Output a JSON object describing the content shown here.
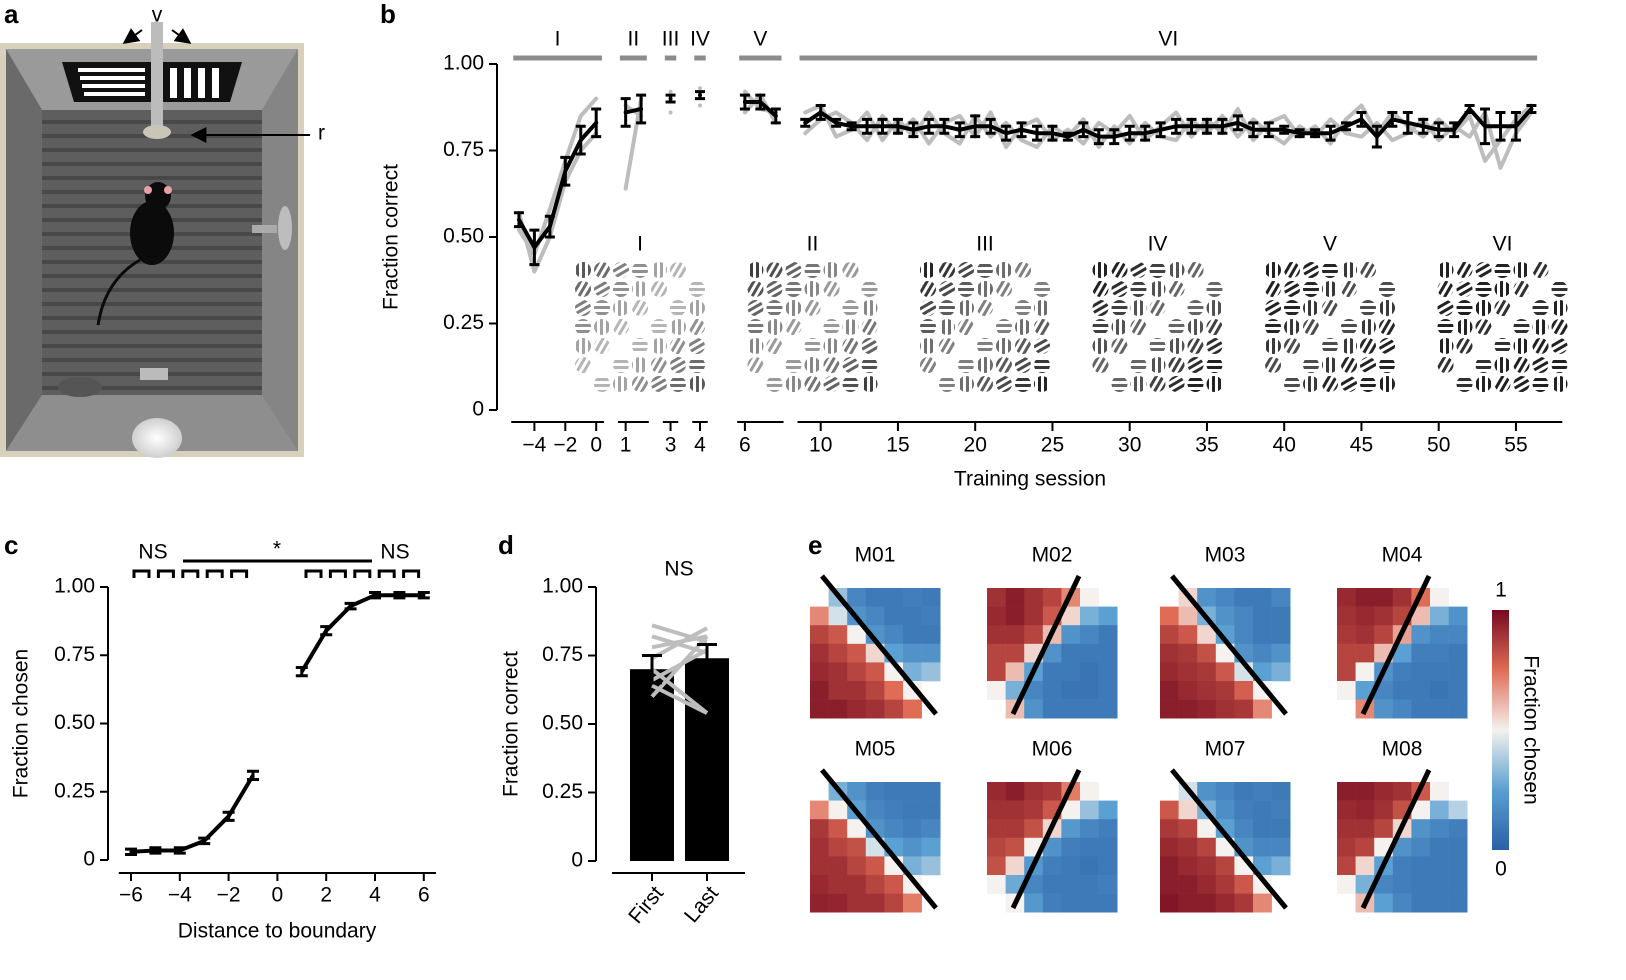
{
  "illustration": {
    "panel": "a",
    "labels": [
      "v",
      "r"
    ]
  },
  "chart_data": [
    {
      "panel": "b",
      "type": "line",
      "ylabel": "Fraction correct",
      "xlabel": "Training session",
      "ylim": [
        0,
        1
      ],
      "yticks": [
        0,
        0.25,
        {
          "value": 0.5,
          "label": "0.50"
        },
        0.75,
        {
          "value": 1,
          "label": "1.00"
        }
      ],
      "xlim": [
        -6,
        58
      ],
      "xticks": [
        {
          "value": -4,
          "label": "−4"
        },
        {
          "value": -2,
          "label": "−2"
        },
        0,
        1,
        3,
        4,
        6,
        10,
        15,
        20,
        25,
        30,
        35,
        40,
        45,
        50,
        55
      ],
      "phases": [
        {
          "label": "I",
          "range": [
            -5,
            0
          ]
        },
        {
          "label": "II",
          "range": [
            1,
            2
          ]
        },
        {
          "label": "III",
          "range": [
            3,
            3
          ]
        },
        {
          "label": "IV",
          "range": [
            4,
            4
          ]
        },
        {
          "label": "V",
          "range": [
            6,
            8
          ]
        },
        {
          "label": "VI",
          "range": [
            9,
            56
          ]
        }
      ],
      "phase_color": "#8c8c8c",
      "insets": [
        "I",
        "II",
        "III",
        "IV",
        "V",
        "VI"
      ],
      "x": [
        -5,
        -4,
        -3,
        -2,
        -1,
        0,
        1,
        2,
        3,
        4,
        6,
        7,
        8,
        9,
        10,
        11,
        12,
        13,
        14,
        15,
        16,
        17,
        18,
        19,
        20,
        21,
        22,
        23,
        24,
        25,
        26,
        27,
        28,
        29,
        30,
        31,
        32,
        33,
        34,
        35,
        36,
        37,
        38,
        39,
        40,
        41,
        42,
        43,
        44,
        45,
        46,
        47,
        48,
        49,
        50,
        51,
        52,
        53,
        54,
        55,
        56
      ],
      "values": [
        0.55,
        0.47,
        0.53,
        0.69,
        0.78,
        0.83,
        0.86,
        0.87,
        0.9,
        0.91,
        0.89,
        0.89,
        0.85,
        0.83,
        0.86,
        0.83,
        0.82,
        0.82,
        0.82,
        0.82,
        0.81,
        0.82,
        0.82,
        0.81,
        0.82,
        0.82,
        0.8,
        0.81,
        0.8,
        0.8,
        0.79,
        0.81,
        0.79,
        0.79,
        0.8,
        0.8,
        0.81,
        0.82,
        0.82,
        0.82,
        0.82,
        0.83,
        0.81,
        0.81,
        0.81,
        0.8,
        0.8,
        0.8,
        0.82,
        0.84,
        0.79,
        0.84,
        0.83,
        0.82,
        0.81,
        0.81,
        0.87,
        0.82,
        0.82,
        0.82,
        0.87
      ],
      "errors": [
        0.02,
        0.05,
        0.03,
        0.04,
        0.04,
        0.04,
        0.04,
        0.04,
        0.01,
        0.01,
        0.02,
        0.02,
        0.02,
        0.01,
        0.02,
        0.01,
        0.01,
        0.02,
        0.02,
        0.02,
        0.02,
        0.02,
        0.02,
        0.02,
        0.03,
        0.02,
        0.02,
        0.02,
        0.02,
        0.02,
        0.01,
        0.02,
        0.02,
        0.02,
        0.02,
        0.02,
        0.02,
        0.02,
        0.02,
        0.02,
        0.02,
        0.02,
        0.02,
        0.02,
        0.01,
        0.01,
        0.01,
        0.02,
        0.01,
        0.02,
        0.03,
        0.02,
        0.03,
        0.02,
        0.02,
        0.02,
        0.01,
        0.05,
        0.04,
        0.04,
        0.01
      ],
      "color": "#000000",
      "individual": [
        [
          0.52,
          0.45,
          0.58,
          0.72,
          0.85,
          0.9,
          0.64,
          0.9,
          0.92,
          0.93,
          0.92,
          0.87,
          0.86,
          0.8,
          0.84,
          0.86,
          0.83,
          0.78,
          0.85,
          0.8,
          0.84,
          0.77,
          0.83,
          0.85,
          0.79,
          0.86,
          0.76,
          0.82,
          0.84,
          0.78,
          0.81,
          0.77,
          0.83,
          0.8,
          0.85,
          0.78,
          0.82,
          0.86,
          0.79,
          0.84,
          0.8,
          0.87,
          0.78,
          0.83,
          0.85,
          0.79,
          0.82,
          0.77,
          0.84,
          0.88,
          0.8,
          0.86,
          0.82,
          0.79,
          0.84,
          0.8,
          0.85,
          0.72,
          0.78,
          0.84,
          0.88
        ],
        [
          0.57,
          0.4,
          0.5,
          0.66,
          0.75,
          0.8,
          0.88,
          0.85,
          0.86,
          0.88,
          0.86,
          0.91,
          0.83,
          0.86,
          0.88,
          0.79,
          0.81,
          0.86,
          0.78,
          0.84,
          0.79,
          0.86,
          0.8,
          0.77,
          0.85,
          0.79,
          0.83,
          0.78,
          0.76,
          0.82,
          0.79,
          0.84,
          0.76,
          0.82,
          0.77,
          0.83,
          0.79,
          0.78,
          0.84,
          0.8,
          0.85,
          0.79,
          0.84,
          0.8,
          0.77,
          0.82,
          0.79,
          0.84,
          0.8,
          0.79,
          0.83,
          0.78,
          0.8,
          0.84,
          0.78,
          0.82,
          0.79,
          0.86,
          0.7,
          0.8,
          0.86
        ]
      ],
      "individual_color": "#bdbdbd"
    },
    {
      "panel": "c",
      "type": "line",
      "ylabel": "Fraction chosen",
      "xlabel": "Distance to boundary",
      "ylim": [
        0,
        1
      ],
      "yticks": [
        0,
        0.25,
        {
          "value": 0.5,
          "label": "0.50"
        },
        0.75,
        {
          "value": 1,
          "label": "1.00"
        }
      ],
      "xlim": [
        -6.5,
        6.5
      ],
      "xticks": [
        {
          "value": -6,
          "label": "−6"
        },
        {
          "value": -4,
          "label": "−4"
        },
        {
          "value": -2,
          "label": "−2"
        },
        0,
        2,
        4,
        6
      ],
      "x": [
        -6,
        -5,
        -4,
        -3,
        -2,
        -1,
        0,
        1,
        2,
        3,
        4,
        5,
        6
      ],
      "values": [
        0.03,
        0.035,
        0.035,
        0.07,
        0.16,
        0.31,
        null,
        0.69,
        0.84,
        0.93,
        0.97,
        0.97,
        0.97
      ],
      "errors": [
        0.01,
        0.01,
        0.01,
        0.01,
        0.015,
        0.015,
        null,
        0.015,
        0.015,
        0.01,
        0.01,
        0.01,
        0.01
      ],
      "color": "#000000",
      "annotations": [
        "NS",
        "*",
        "NS"
      ]
    },
    {
      "panel": "d",
      "type": "bar",
      "ylabel": "Fraction correct",
      "ylim": [
        0,
        1
      ],
      "yticks": [
        0,
        0.25,
        {
          "value": 0.5,
          "label": "0.50"
        },
        0.75,
        {
          "value": 1,
          "label": "1.00"
        }
      ],
      "categories": [
        "First",
        "Last"
      ],
      "values": [
        0.7,
        0.74
      ],
      "errors": [
        0.05,
        0.05
      ],
      "color": "#000000",
      "individual": [
        [
          0.82,
          0.76
        ],
        [
          0.86,
          0.8
        ],
        [
          0.78,
          0.82
        ],
        [
          0.6,
          0.82
        ],
        [
          0.64,
          0.54
        ],
        [
          0.7,
          0.54
        ],
        [
          0.66,
          0.77
        ],
        [
          0.74,
          0.85
        ]
      ],
      "individual_color": "#bdbdbd",
      "annotation": "NS"
    },
    {
      "panel": "e",
      "type": "heatmap",
      "clim": [
        0,
        1
      ],
      "cticks": [
        0,
        1
      ],
      "colorbar_label": "Fraction chosen",
      "colormap": [
        "#2c5fa7",
        "#5aa0d2",
        "#f4f1ee",
        "#e06c55",
        "#760a20"
      ],
      "heatmaps": [
        {
          "title": "M01",
          "boundary": "descending",
          "values": [
            [
              null,
              0.35,
              0.15,
              0.1,
              0.1,
              0.12,
              0.1
            ],
            [
              0.7,
              0.45,
              0.2,
              0.15,
              0.1,
              0.1,
              0.12
            ],
            [
              0.85,
              0.8,
              0.5,
              0.2,
              0.15,
              0.1,
              0.1
            ],
            [
              0.9,
              0.85,
              0.8,
              0.55,
              0.25,
              0.2,
              0.2
            ],
            [
              0.92,
              0.9,
              0.85,
              0.8,
              0.5,
              0.3,
              0.35
            ],
            [
              0.95,
              0.9,
              0.9,
              0.85,
              0.75,
              0.5,
              null
            ],
            [
              0.95,
              0.95,
              0.92,
              0.9,
              0.85,
              0.75,
              null
            ]
          ]
        },
        {
          "title": "M02",
          "boundary": "ascending",
          "values": [
            [
              0.9,
              0.95,
              0.9,
              0.85,
              0.7,
              0.5,
              null
            ],
            [
              0.92,
              0.95,
              0.9,
              0.8,
              0.55,
              0.3,
              0.25
            ],
            [
              0.9,
              0.9,
              0.85,
              0.6,
              0.2,
              0.15,
              0.1
            ],
            [
              0.85,
              0.85,
              0.55,
              0.2,
              0.1,
              0.1,
              0.1
            ],
            [
              0.85,
              0.6,
              0.25,
              0.1,
              0.1,
              0.08,
              0.1
            ],
            [
              0.5,
              0.3,
              0.15,
              0.1,
              0.08,
              0.08,
              0.1
            ],
            [
              null,
              0.6,
              0.2,
              0.1,
              0.1,
              0.1,
              0.1
            ]
          ]
        },
        {
          "title": "M03",
          "boundary": "descending",
          "values": [
            [
              null,
              0.55,
              0.2,
              0.15,
              0.1,
              0.1,
              0.15
            ],
            [
              0.75,
              0.6,
              0.3,
              0.2,
              0.15,
              0.1,
              0.1
            ],
            [
              0.85,
              0.8,
              0.55,
              0.25,
              0.15,
              0.1,
              0.1
            ],
            [
              0.9,
              0.88,
              0.82,
              0.5,
              0.2,
              0.15,
              0.2
            ],
            [
              0.92,
              0.9,
              0.88,
              0.8,
              0.45,
              0.25,
              0.3
            ],
            [
              0.95,
              0.92,
              0.9,
              0.88,
              0.78,
              0.5,
              null
            ],
            [
              0.95,
              0.95,
              0.93,
              0.9,
              0.88,
              0.7,
              null
            ]
          ]
        },
        {
          "title": "M04",
          "boundary": "ascending",
          "values": [
            [
              0.92,
              0.95,
              0.95,
              0.9,
              0.75,
              0.5,
              null
            ],
            [
              0.9,
              0.92,
              0.9,
              0.85,
              0.6,
              0.3,
              0.2
            ],
            [
              0.88,
              0.9,
              0.85,
              0.65,
              0.2,
              0.15,
              0.15
            ],
            [
              0.85,
              0.85,
              0.6,
              0.25,
              0.12,
              0.12,
              0.1
            ],
            [
              0.85,
              0.5,
              0.2,
              0.12,
              0.1,
              0.1,
              0.1
            ],
            [
              0.5,
              0.25,
              0.15,
              0.1,
              0.1,
              0.08,
              0.1
            ],
            [
              null,
              0.7,
              0.2,
              0.15,
              0.1,
              0.1,
              0.1
            ]
          ]
        },
        {
          "title": "M05",
          "boundary": "descending",
          "values": [
            [
              null,
              0.3,
              0.2,
              0.12,
              0.1,
              0.1,
              0.1
            ],
            [
              0.7,
              0.5,
              0.25,
              0.15,
              0.12,
              0.1,
              0.1
            ],
            [
              0.88,
              0.8,
              0.5,
              0.2,
              0.15,
              0.12,
              0.15
            ],
            [
              0.9,
              0.85,
              0.82,
              0.45,
              0.25,
              0.2,
              0.25
            ],
            [
              0.9,
              0.9,
              0.85,
              0.8,
              0.5,
              0.3,
              0.35
            ],
            [
              0.92,
              0.9,
              0.9,
              0.85,
              0.8,
              0.5,
              null
            ],
            [
              0.94,
              0.93,
              0.9,
              0.9,
              0.85,
              0.72,
              null
            ]
          ]
        },
        {
          "title": "M06",
          "boundary": "ascending",
          "values": [
            [
              0.92,
              0.95,
              0.9,
              0.88,
              0.72,
              0.5,
              null
            ],
            [
              0.9,
              0.9,
              0.88,
              0.8,
              0.5,
              0.35,
              0.25
            ],
            [
              0.88,
              0.88,
              0.82,
              0.55,
              0.22,
              0.15,
              0.12
            ],
            [
              0.85,
              0.82,
              0.5,
              0.2,
              0.12,
              0.1,
              0.1
            ],
            [
              0.82,
              0.55,
              0.22,
              0.12,
              0.1,
              0.08,
              0.1
            ],
            [
              0.5,
              0.28,
              0.15,
              0.1,
              0.1,
              0.1,
              0.12
            ],
            [
              null,
              0.5,
              0.22,
              0.12,
              0.1,
              0.1,
              0.1
            ]
          ]
        },
        {
          "title": "M07",
          "boundary": "descending",
          "values": [
            [
              null,
              0.45,
              0.2,
              0.15,
              0.1,
              0.12,
              0.1
            ],
            [
              0.8,
              0.55,
              0.3,
              0.18,
              0.12,
              0.1,
              0.12
            ],
            [
              0.88,
              0.85,
              0.5,
              0.25,
              0.15,
              0.1,
              0.1
            ],
            [
              0.92,
              0.9,
              0.85,
              0.5,
              0.2,
              0.15,
              0.15
            ],
            [
              0.95,
              0.92,
              0.9,
              0.85,
              0.5,
              0.25,
              0.3
            ],
            [
              0.95,
              0.95,
              0.92,
              0.88,
              0.8,
              0.5,
              null
            ],
            [
              0.97,
              0.95,
              0.95,
              0.92,
              0.88,
              0.7,
              null
            ]
          ]
        },
        {
          "title": "M08",
          "boundary": "ascending",
          "values": [
            [
              0.95,
              0.95,
              0.92,
              0.9,
              0.8,
              0.5,
              null
            ],
            [
              0.92,
              0.93,
              0.9,
              0.82,
              0.5,
              0.3,
              0.4
            ],
            [
              0.9,
              0.9,
              0.85,
              0.55,
              0.2,
              0.15,
              0.12
            ],
            [
              0.88,
              0.85,
              0.5,
              0.2,
              0.15,
              0.1,
              0.1
            ],
            [
              0.85,
              0.55,
              0.25,
              0.12,
              0.1,
              0.1,
              0.1
            ],
            [
              0.5,
              0.3,
              0.15,
              0.12,
              0.1,
              0.1,
              0.1
            ],
            [
              null,
              0.6,
              0.25,
              0.15,
              0.1,
              0.1,
              0.1
            ]
          ]
        }
      ]
    }
  ]
}
